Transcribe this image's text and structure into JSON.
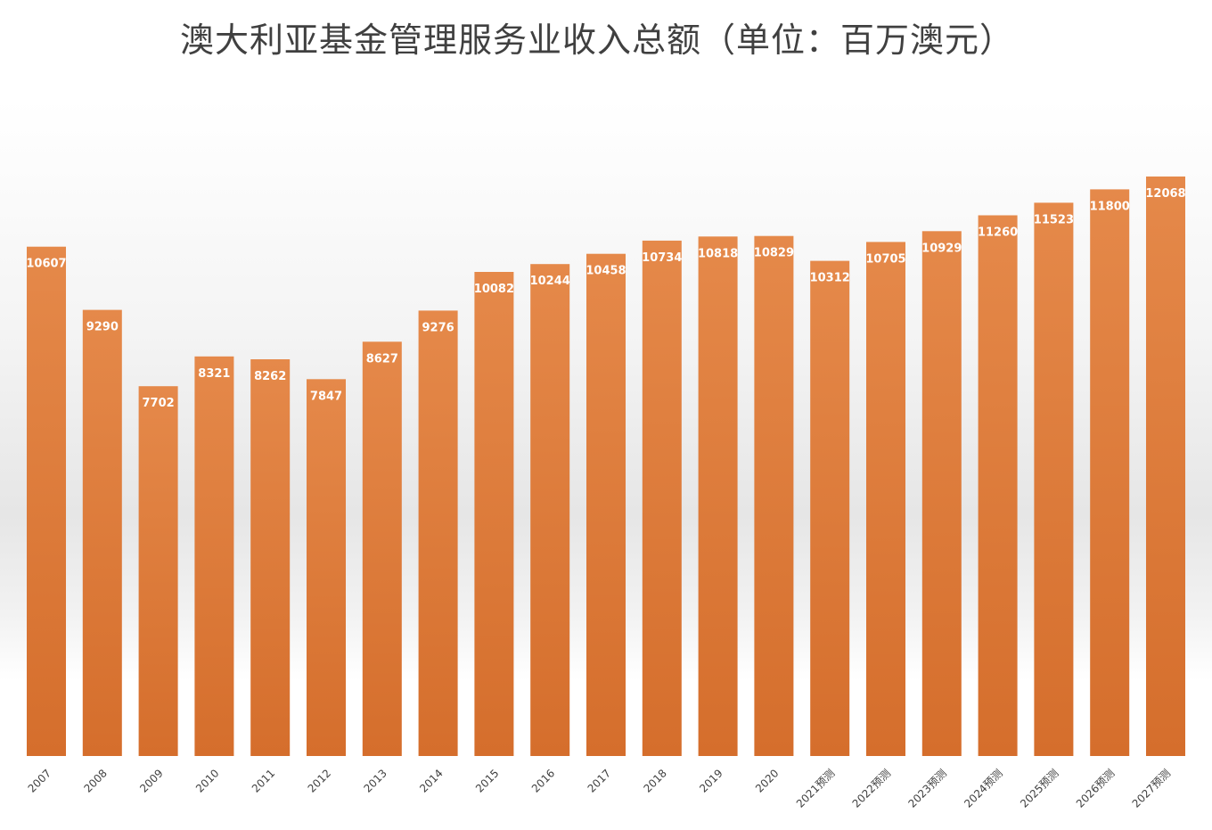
{
  "chart_data": {
    "type": "bar",
    "title": "澳大利亚基金管理服务业收入总额（单位：百万澳元）",
    "xlabel": "",
    "ylabel": "",
    "categories": [
      "2007",
      "2008",
      "2009",
      "2010",
      "2011",
      "2012",
      "2013",
      "2014",
      "2015",
      "2016",
      "2017",
      "2018",
      "2019",
      "2020",
      "2021预测",
      "2022预测",
      "2023预测",
      "2024预测",
      "2025预测",
      "2026预测",
      "2027预测"
    ],
    "values": [
      10607,
      9290,
      7702,
      8321,
      8262,
      7847,
      8627,
      9276,
      10082,
      10244,
      10458,
      10734,
      10818,
      10829,
      10312,
      10705,
      10929,
      11260,
      11523,
      11800,
      12068
    ],
    "ylim": [
      0,
      12068
    ],
    "grid": false,
    "legend": "none",
    "data_labels": true,
    "colors": {
      "bar_top": "#e5894a",
      "bar_bottom": "#d56e2c",
      "label": "#ffffff",
      "title": "#404040"
    }
  }
}
